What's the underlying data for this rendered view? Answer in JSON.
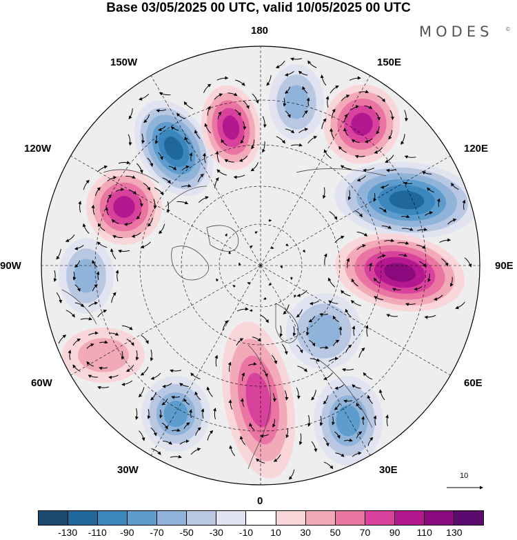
{
  "title": "Base 03/05/2025 00 UTC, valid 10/05/2025 00 UTC",
  "brand": "MODES",
  "brand_symbol": "©",
  "projection": "north-polar-stereographic",
  "longitude_labels": {
    "lon_180": "180",
    "lon_150e": "150E",
    "lon_120e": "120E",
    "lon_90e": "90E",
    "lon_60e": "60E",
    "lon_30e": "30E",
    "lon_0": "0",
    "lon_30w": "30W",
    "lon_60w": "60W",
    "lon_90w": "90W",
    "lon_120w": "120W",
    "lon_150w": "150W"
  },
  "reference_vector": {
    "value": "10"
  },
  "colorbar": {
    "ticks": [
      "-130",
      "-110",
      "-90",
      "-70",
      "-50",
      "-30",
      "-10",
      "10",
      "30",
      "50",
      "70",
      "90",
      "110",
      "130"
    ],
    "colors": [
      "#1c4a6c",
      "#21689a",
      "#3a86bd",
      "#5d9ccc",
      "#8fb3d9",
      "#b8c7e2",
      "#e1e4f0",
      "#ffffff",
      "#f8d6d9",
      "#f2a9b8",
      "#ea75a3",
      "#d9429c",
      "#b5178f",
      "#8a0a7e",
      "#5b0a6e"
    ]
  },
  "anomaly_centers": [
    {
      "id": "west-pacific-low",
      "value": -120
    },
    {
      "id": "alaska-high-north",
      "value": 100
    },
    {
      "id": "chukchi-low",
      "value": -50
    },
    {
      "id": "east-siberian-high",
      "value": 105
    },
    {
      "id": "siberia-low",
      "value": -115
    },
    {
      "id": "central-asia-high",
      "value": 115
    },
    {
      "id": "canada-high",
      "value": 100
    },
    {
      "id": "hudson-low",
      "value": -60
    },
    {
      "id": "central-atlantic-high",
      "value": 45
    },
    {
      "id": "north-atlantic-low",
      "value": -75
    },
    {
      "id": "europe-high",
      "value": 80
    },
    {
      "id": "black-sea-low",
      "value": -85
    },
    {
      "id": "kara-low",
      "value": -60
    }
  ]
}
